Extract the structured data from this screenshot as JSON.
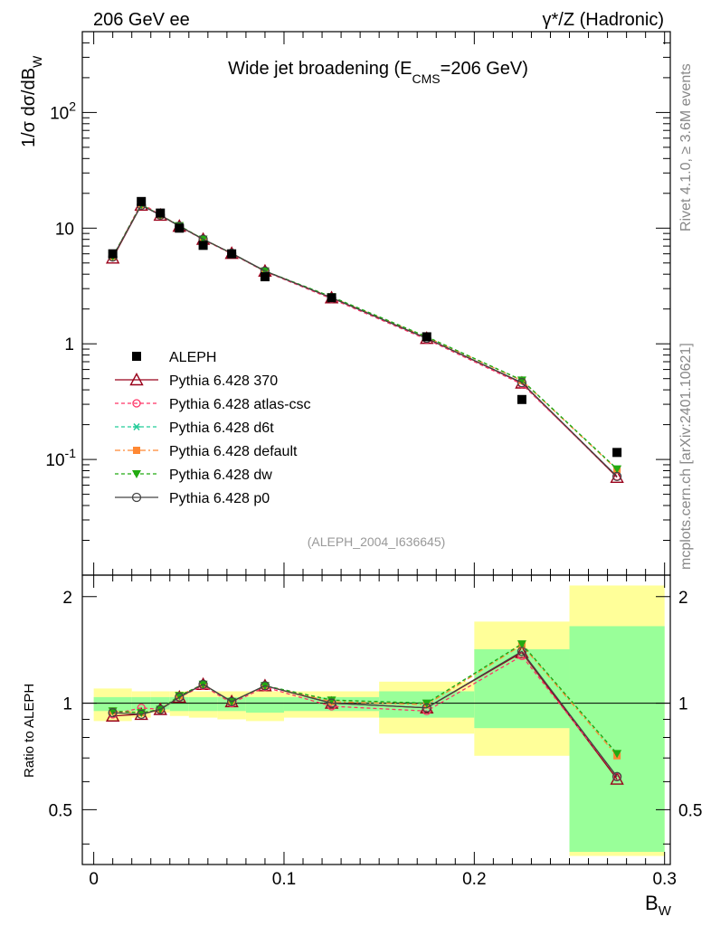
{
  "header": {
    "left": "206 GeV ee",
    "right": "γ*/Z (Hadronic)"
  },
  "side_labels": {
    "rivet": "Rivet 4.1.0, ≥ 3.6M events",
    "mcplots": "mcplots.cern.ch [arXiv:2401.10621]"
  },
  "chart_data": {
    "type": "scatter",
    "title_prefix": "Wide jet broadening (E",
    "title_sub": "CMS",
    "title_suffix": "=206 GeV)",
    "analysis_id": "(ALEPH_2004_I636645)",
    "xlabel": "B",
    "xlabel_sub": "W",
    "ylabel_prefix": "1/σ  dσ/dB",
    "ylabel_sub": "W",
    "ratio_ylabel": "Ratio to ALEPH",
    "xlim": [
      -0.006,
      0.303
    ],
    "ylim_log": [
      0.01,
      500
    ],
    "ratio_ylim": [
      0.35,
      2.3
    ],
    "x_ticks": [
      "0",
      "0.1",
      "0.2",
      "0.3"
    ],
    "y_ticks": [
      "10^-1",
      "1",
      "10",
      "10^2"
    ],
    "ratio_ticks": [
      "0.5",
      "1",
      "2"
    ],
    "x": [
      0.01,
      0.025,
      0.035,
      0.045,
      0.0575,
      0.0725,
      0.09,
      0.125,
      0.175,
      0.225,
      0.275
    ],
    "bin_edges": [
      0.0,
      0.02,
      0.03,
      0.04,
      0.05,
      0.065,
      0.08,
      0.1,
      0.15,
      0.2,
      0.25,
      0.3
    ],
    "data": {
      "name": "ALEPH",
      "values": [
        6.0,
        17.0,
        13.5,
        10.0,
        7.1,
        6.0,
        3.8,
        2.5,
        1.15,
        0.33,
        0.115
      ]
    },
    "band_yellow": {
      "low": [
        0.89,
        0.91,
        0.94,
        0.92,
        0.91,
        0.9,
        0.89,
        0.91,
        0.82,
        0.71,
        0.37
      ],
      "high": [
        1.1,
        1.08,
        1.08,
        1.08,
        1.08,
        1.08,
        1.08,
        1.08,
        1.15,
        1.7,
        2.15
      ]
    },
    "band_green": {
      "low": [
        0.95,
        0.95,
        0.96,
        0.95,
        0.95,
        0.95,
        0.94,
        0.95,
        0.91,
        0.85,
        0.38
      ],
      "high": [
        1.04,
        1.04,
        1.04,
        1.04,
        1.04,
        1.04,
        1.04,
        1.04,
        1.08,
        1.42,
        1.65
      ]
    },
    "series": [
      {
        "name": "Pythia 6.428 370",
        "color": "#99001a",
        "marker": "triangle",
        "dash": "",
        "ratio": [
          0.92,
          0.93,
          0.96,
          1.04,
          1.13,
          1.01,
          1.12,
          1.0,
          0.97,
          1.39,
          0.61
        ]
      },
      {
        "name": "Pythia 6.428 atlas-csc",
        "color": "#ff3366",
        "marker": "circle",
        "dash": "4,3",
        "ratio": [
          0.93,
          0.97,
          0.96,
          1.04,
          1.12,
          1.0,
          1.11,
          0.98,
          0.95,
          1.36,
          0.62
        ]
      },
      {
        "name": "Pythia 6.428 d6t",
        "color": "#22cc99",
        "marker": "asterisk",
        "dash": "4,3",
        "ratio": [
          0.95,
          0.94,
          0.96,
          1.05,
          1.13,
          1.01,
          1.12,
          1.02,
          1.0,
          1.47,
          0.72
        ]
      },
      {
        "name": "Pythia 6.428 default",
        "color": "#ff8833",
        "marker": "square",
        "dash": "6,3,2,3",
        "ratio": [
          0.95,
          0.94,
          0.96,
          1.05,
          1.13,
          1.01,
          1.12,
          1.01,
          0.99,
          1.46,
          0.71
        ]
      },
      {
        "name": "Pythia 6.428 dw",
        "color": "#22aa11",
        "marker": "tri-down",
        "dash": "4,3",
        "ratio": [
          0.95,
          0.94,
          0.96,
          1.05,
          1.13,
          1.01,
          1.12,
          1.02,
          1.0,
          1.47,
          0.72
        ]
      },
      {
        "name": "Pythia 6.428 p0",
        "color": "#444444",
        "marker": "open-circle",
        "dash": "",
        "ratio": [
          0.94,
          0.93,
          0.96,
          1.04,
          1.13,
          1.01,
          1.12,
          1.0,
          0.97,
          1.4,
          0.62
        ]
      }
    ]
  }
}
